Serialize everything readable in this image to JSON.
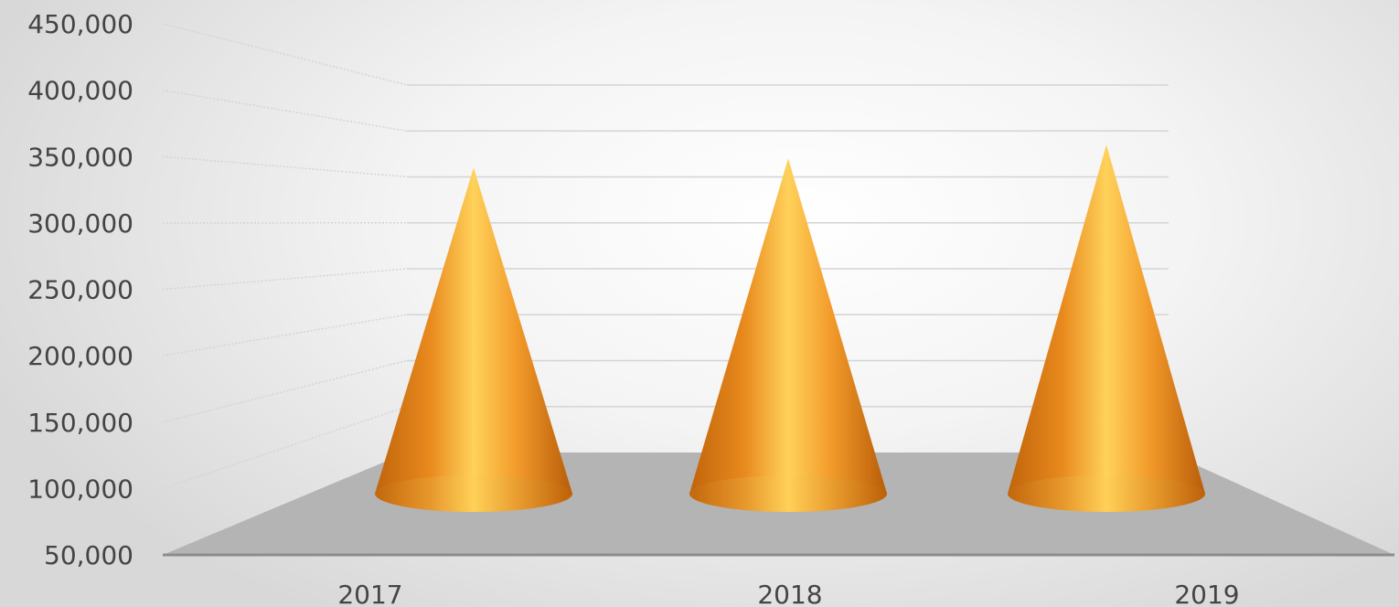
{
  "chart_data": {
    "type": "bar",
    "shape": "cone",
    "style": "3d",
    "categories": [
      "2017",
      "2018",
      "2019"
    ],
    "series": [
      {
        "values": [
          360000,
          370000,
          385000
        ]
      }
    ],
    "ylim": [
      50000,
      450000
    ],
    "yticks": [
      "450,000",
      "400,000",
      "350,000",
      "300,000",
      "250,000",
      "200,000",
      "150,000",
      "100,000",
      "50,000"
    ],
    "ytick_values": [
      450000,
      400000,
      350000,
      300000,
      250000,
      200000,
      150000,
      100000,
      50000
    ],
    "grid": true,
    "legend": "none",
    "colors": {
      "cone_dark": "#c0640a",
      "cone_mid": "#f29a2a",
      "cone_light": "#ffd25a",
      "floor": "#b4b4b4",
      "floor_edge": "#8c8c8c",
      "gridline": "#d4d4d4",
      "tick_text": "#444444"
    }
  }
}
